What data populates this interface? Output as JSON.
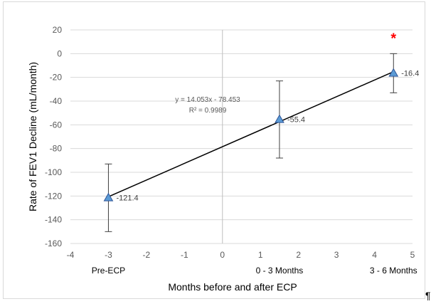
{
  "chart_data": {
    "type": "scatter",
    "xlabel": "Months before and after ECP",
    "ylabel": "Rate of FEV1 Decline (mL/month)",
    "xlim": [
      -4,
      5
    ],
    "ylim": [
      -160,
      20
    ],
    "x_ticks": [
      -4,
      -3,
      -2,
      -1,
      0,
      1,
      2,
      3,
      4,
      5
    ],
    "y_ticks": [
      20,
      0,
      -20,
      -40,
      -60,
      -80,
      -100,
      -120,
      -140,
      -160
    ],
    "grid": "horizontal",
    "marker": "triangle",
    "marker_color": "#5b9bd5",
    "categories": [
      {
        "label": "Pre-ECP",
        "x": -3
      },
      {
        "label": "0 - 3 Months",
        "x": 1.5
      },
      {
        "label": "3 - 6 Months",
        "x": 4.5
      }
    ],
    "series": [
      {
        "points": [
          {
            "x": -3,
            "y": -121.4,
            "label": "-121.4",
            "err_high": -93,
            "err_low": -150
          },
          {
            "x": 1.5,
            "y": -55.4,
            "label": "-55.4",
            "err_high": -23,
            "err_low": -88
          },
          {
            "x": 4.5,
            "y": -16.4,
            "label": "-16.4",
            "err_high": 0,
            "err_low": -33
          }
        ]
      }
    ],
    "trendline": {
      "type": "linear",
      "x_range": [
        -3,
        4.5
      ],
      "slope": 14.053,
      "intercept": -78.453,
      "equation": "y = 14.053x - 78.453",
      "r_squared": "R² = 0.9989"
    },
    "annotations": [
      {
        "text": "*",
        "x": 4.5,
        "y": 9,
        "color": "#ff0000"
      }
    ]
  },
  "trailing_mark": "¶"
}
